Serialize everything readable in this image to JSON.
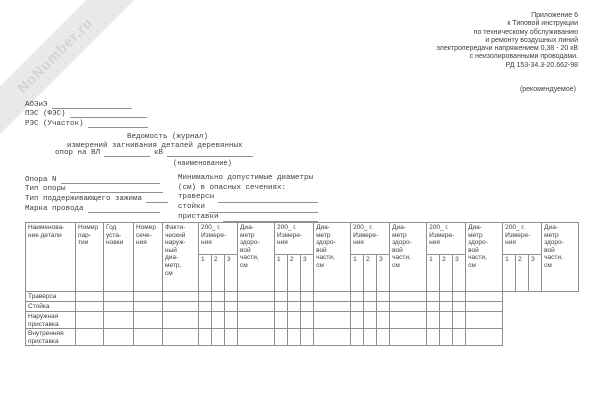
{
  "watermark": {
    "text": "NoNumber.ru"
  },
  "appendix": {
    "lines": [
      "Приложение 6",
      "к Типовой инструкции",
      "по техническому обслуживанию",
      "и ремонту воздушных линий",
      "электропередачи напряжением 0,38 - 20 кВ",
      "с неизолированными проводами.",
      "РД 153-34.3-20.662-98"
    ],
    "note": "(рекомендуемое)"
  },
  "org_fields": [
    {
      "label": "АОЭиЭ"
    },
    {
      "label": "ПЭС (ФЭС)"
    },
    {
      "label": "РЭС (Участок)"
    }
  ],
  "title": {
    "line1": "Ведомость (журнал)",
    "line2": "измерений загнивания деталей деревянных",
    "line3_prefix": "опор на ВЛ",
    "line3_unit": "кВ",
    "caption": "(наименование)"
  },
  "pole_fields": [
    {
      "label": "Опора N"
    },
    {
      "label": "Тип опоры"
    },
    {
      "label": "Тип поддерживающего зажима"
    },
    {
      "label": "Марка провода"
    }
  ],
  "min_diameters": {
    "heading_line1": "Минимально допустимые диаметры",
    "heading_line2": "(см) в опасных сечениях:",
    "items": [
      {
        "label": "траверсы"
      },
      {
        "label": "стойки"
      },
      {
        "label": "приставки"
      }
    ]
  },
  "table": {
    "fixed_headers": [
      "Наименова-\nние детали",
      "Номер\nпар-\nтии",
      "Год\nуста-\nновки",
      "Номер\nсече-\nния",
      "Факти-\nческий\nнаруж-\nный\nдиа-\nметр,\nсм"
    ],
    "year_group_header": "200_ г.\nИзмере-\nния",
    "year_group_count": 5,
    "measurement_subcolumns": [
      "1",
      "2",
      "3"
    ],
    "diameter_header": "Диа-\nметр\nздоро-\nвой\nчасти,\nсм",
    "row_labels": [
      "Траверса",
      "Стойка",
      "Наружная\nприставка",
      "Внутренняя\nприставка"
    ]
  }
}
